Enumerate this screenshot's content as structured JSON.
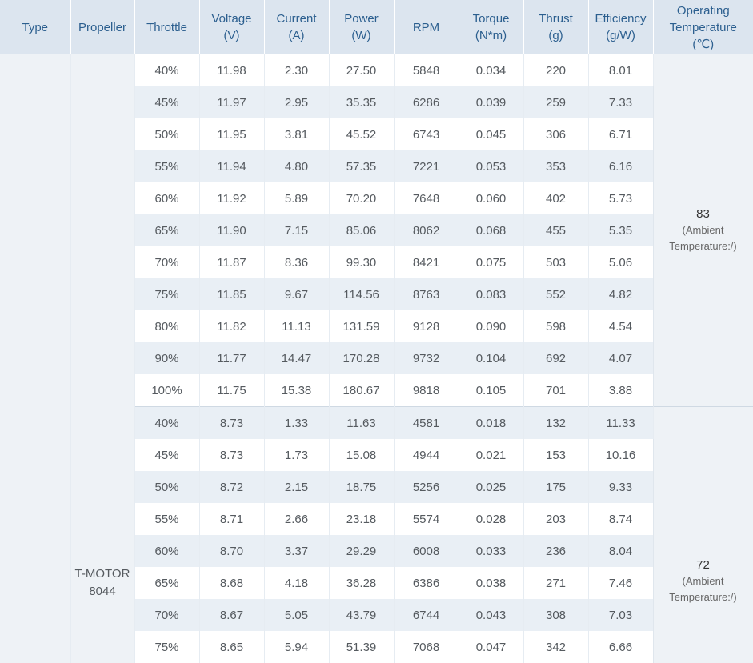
{
  "headers": [
    {
      "line1": "Type",
      "line2": ""
    },
    {
      "line1": "Propeller",
      "line2": ""
    },
    {
      "line1": "Throttle",
      "line2": ""
    },
    {
      "line1": "Voltage",
      "line2": "(V)"
    },
    {
      "line1": "Current",
      "line2": "(A)"
    },
    {
      "line1": "Power",
      "line2": "(W)"
    },
    {
      "line1": "RPM",
      "line2": ""
    },
    {
      "line1": "Torque",
      "line2": "(N*m)"
    },
    {
      "line1": "Thrust",
      "line2": "(g)"
    },
    {
      "line1": "Efficiency",
      "line2": "(g/W)"
    },
    {
      "line1": "Operating",
      "line2": "Temperature",
      "line3": "(℃)"
    }
  ],
  "propeller": {
    "line1": "T-MOTOR",
    "line2": "8044"
  },
  "groups": [
    {
      "temperature": "83",
      "note_line1": "(Ambient",
      "note_line2": "Temperature:/)",
      "rows": [
        [
          "40%",
          "11.98",
          "2.30",
          "27.50",
          "5848",
          "0.034",
          "220",
          "8.01"
        ],
        [
          "45%",
          "11.97",
          "2.95",
          "35.35",
          "6286",
          "0.039",
          "259",
          "7.33"
        ],
        [
          "50%",
          "11.95",
          "3.81",
          "45.52",
          "6743",
          "0.045",
          "306",
          "6.71"
        ],
        [
          "55%",
          "11.94",
          "4.80",
          "57.35",
          "7221",
          "0.053",
          "353",
          "6.16"
        ],
        [
          "60%",
          "11.92",
          "5.89",
          "70.20",
          "7648",
          "0.060",
          "402",
          "5.73"
        ],
        [
          "65%",
          "11.90",
          "7.15",
          "85.06",
          "8062",
          "0.068",
          "455",
          "5.35"
        ],
        [
          "70%",
          "11.87",
          "8.36",
          "99.30",
          "8421",
          "0.075",
          "503",
          "5.06"
        ],
        [
          "75%",
          "11.85",
          "9.67",
          "114.56",
          "8763",
          "0.083",
          "552",
          "4.82"
        ],
        [
          "80%",
          "11.82",
          "11.13",
          "131.59",
          "9128",
          "0.090",
          "598",
          "4.54"
        ],
        [
          "90%",
          "11.77",
          "14.47",
          "170.28",
          "9732",
          "0.104",
          "692",
          "4.07"
        ],
        [
          "100%",
          "11.75",
          "15.38",
          "180.67",
          "9818",
          "0.105",
          "701",
          "3.88"
        ]
      ]
    },
    {
      "temperature": "72",
      "note_line1": "(Ambient",
      "note_line2": "Temperature:/)",
      "rows": [
        [
          "40%",
          "8.73",
          "1.33",
          "11.63",
          "4581",
          "0.018",
          "132",
          "11.33"
        ],
        [
          "45%",
          "8.73",
          "1.73",
          "15.08",
          "4944",
          "0.021",
          "153",
          "10.16"
        ],
        [
          "50%",
          "8.72",
          "2.15",
          "18.75",
          "5256",
          "0.025",
          "175",
          "9.33"
        ],
        [
          "55%",
          "8.71",
          "2.66",
          "23.18",
          "5574",
          "0.028",
          "203",
          "8.74"
        ],
        [
          "60%",
          "8.70",
          "3.37",
          "29.29",
          "6008",
          "0.033",
          "236",
          "8.04"
        ],
        [
          "65%",
          "8.68",
          "4.18",
          "36.28",
          "6386",
          "0.038",
          "271",
          "7.46"
        ],
        [
          "70%",
          "8.67",
          "5.05",
          "43.79",
          "6744",
          "0.043",
          "308",
          "7.03"
        ],
        [
          "75%",
          "8.65",
          "5.94",
          "51.39",
          "7068",
          "0.047",
          "342",
          "6.66"
        ]
      ]
    }
  ],
  "colors": {
    "header_bg": "#dce5ef",
    "header_text": "#2c5f8f",
    "row_stripe": "#e9eff5",
    "body_text": "#555a5f"
  }
}
